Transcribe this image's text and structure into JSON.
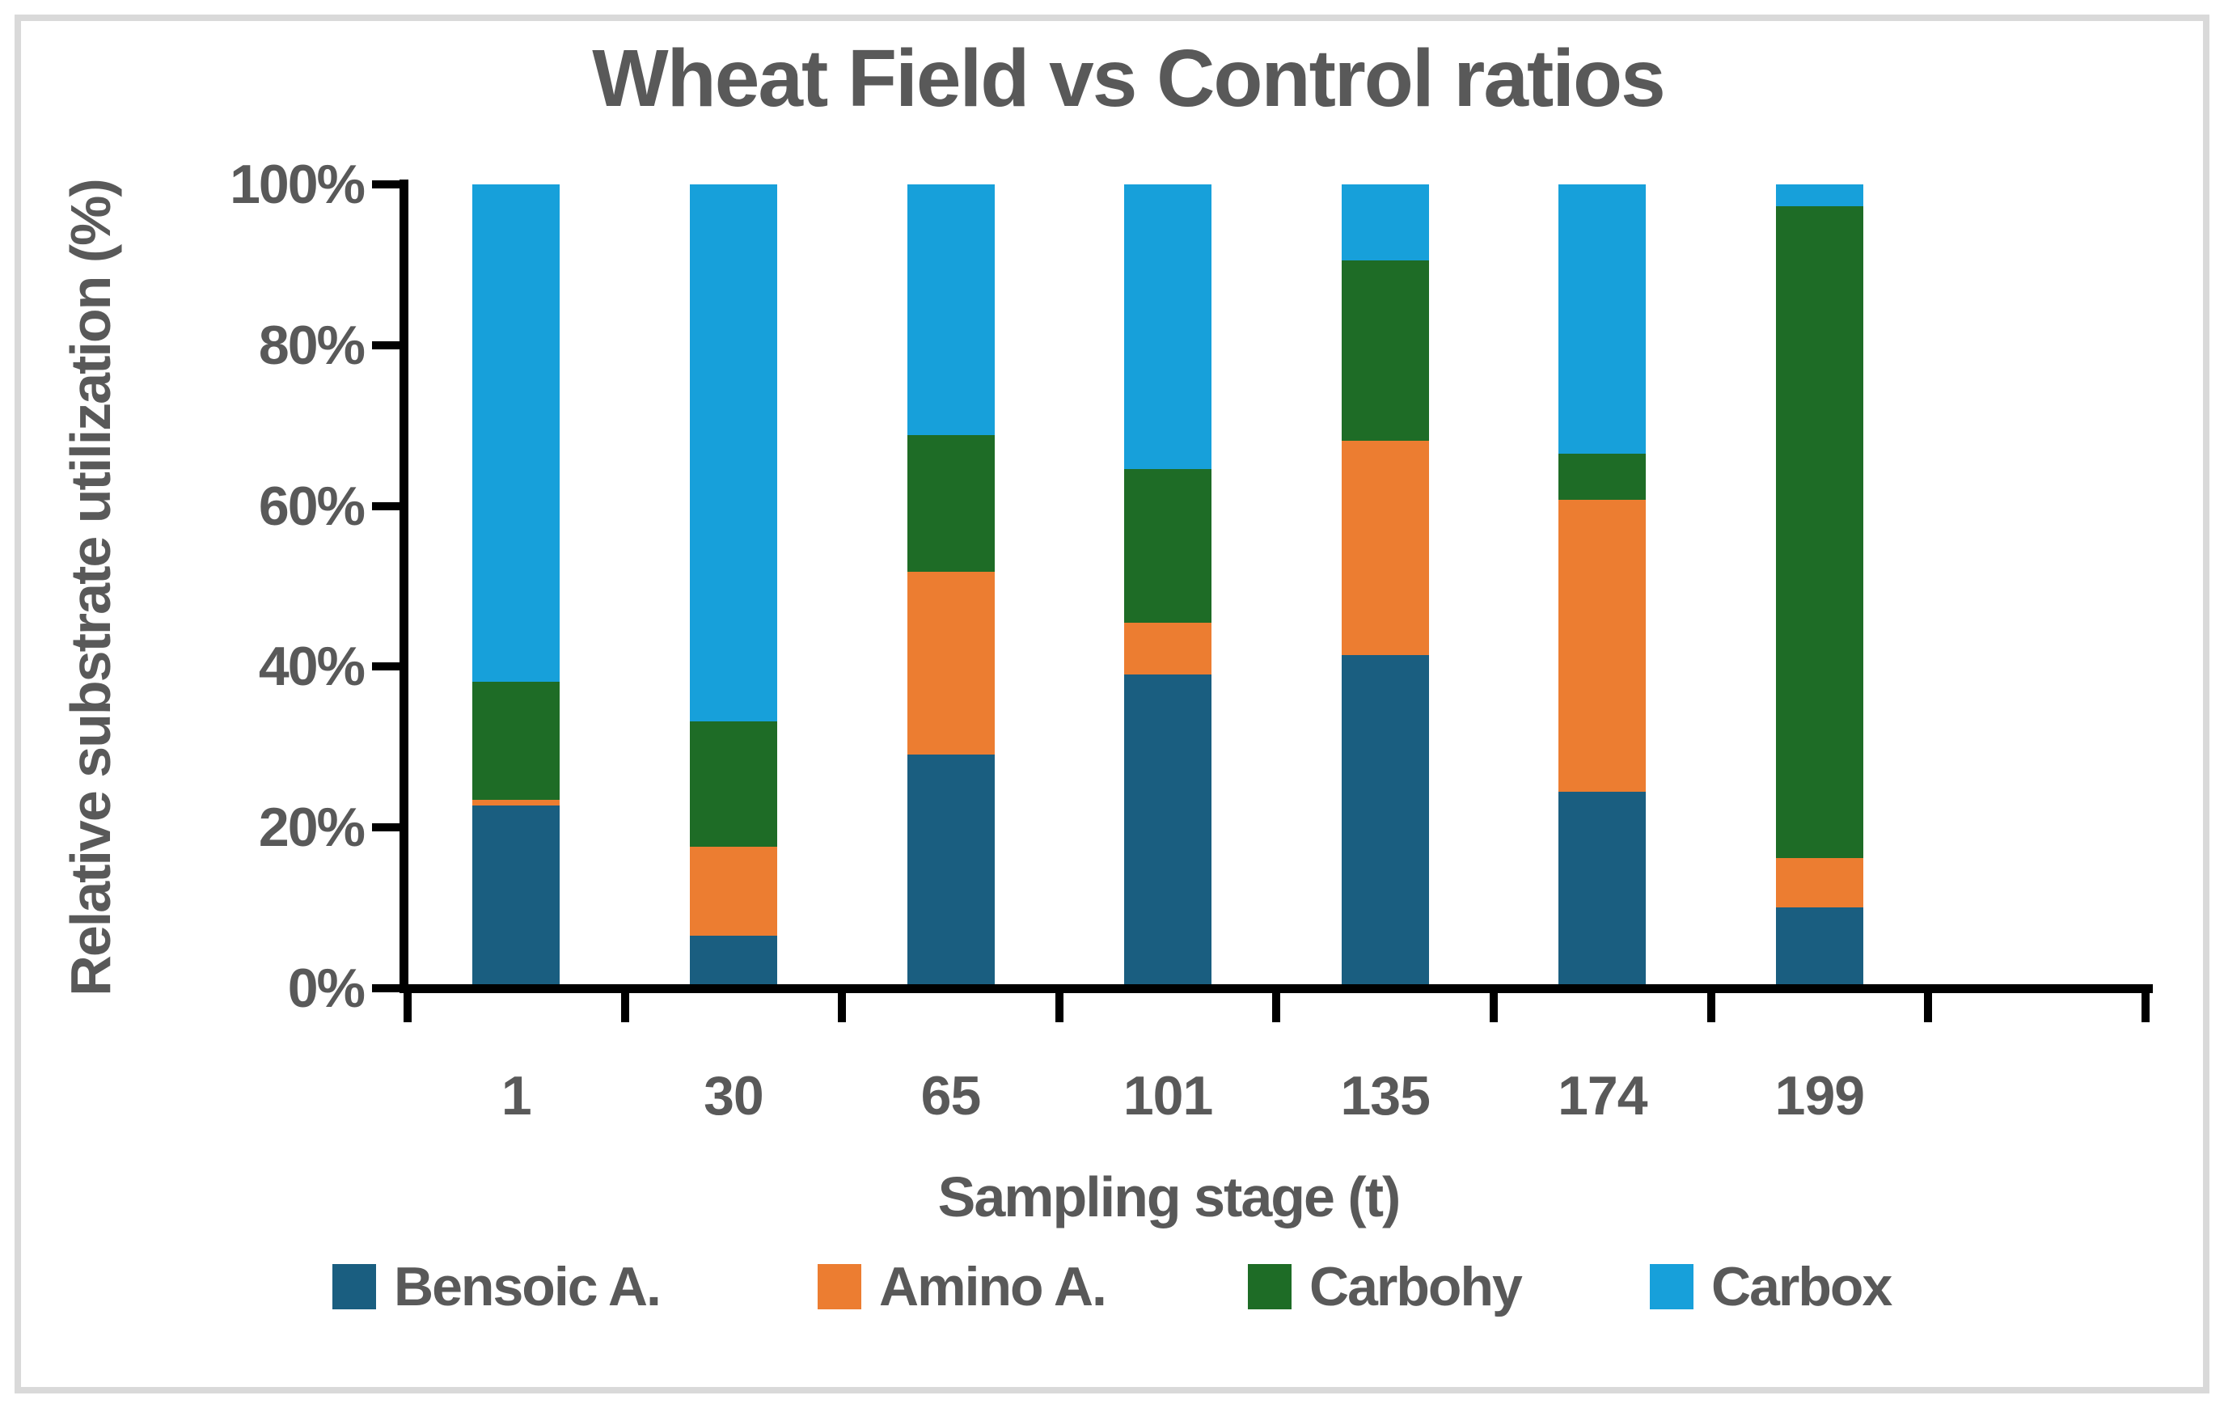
{
  "title": "Wheat Field vs Control ratios",
  "chart_data": {
    "type": "bar",
    "stacked": true,
    "percent_stacked": true,
    "title": "Wheat Field vs Control ratios",
    "xlabel": "Sampling stage (t)",
    "ylabel": "Relative substrate utilization (%)",
    "categories": [
      "1",
      "30",
      "65",
      "101",
      "135",
      "174",
      "199"
    ],
    "series": [
      {
        "name": "Bensoic A.",
        "color": "#1A5E80",
        "values": [
          22.7,
          6.5,
          29.1,
          39.0,
          41.5,
          24.4,
          10.1
        ]
      },
      {
        "name": "Amino A.",
        "color": "#EC7D31",
        "values": [
          0.7,
          11.1,
          22.7,
          6.5,
          26.6,
          36.4,
          6.1
        ]
      },
      {
        "name": "Carbohy",
        "color": "#1E6C26",
        "values": [
          14.7,
          15.6,
          17.0,
          19.1,
          22.4,
          5.7,
          81.1
        ]
      },
      {
        "name": "Carbox",
        "color": "#17A0DA",
        "values": [
          61.9,
          66.8,
          31.2,
          35.4,
          9.5,
          33.5,
          2.7
        ]
      }
    ],
    "y_ticks": [
      "0%",
      "20%",
      "40%",
      "60%",
      "80%",
      "100%"
    ],
    "ylim": [
      0,
      100
    ],
    "grid": false,
    "legend_position": "bottom"
  },
  "colors": {
    "text": "#595959",
    "axis": "#000000",
    "frame": "#D9D9D9",
    "background": "#FFFFFF"
  }
}
